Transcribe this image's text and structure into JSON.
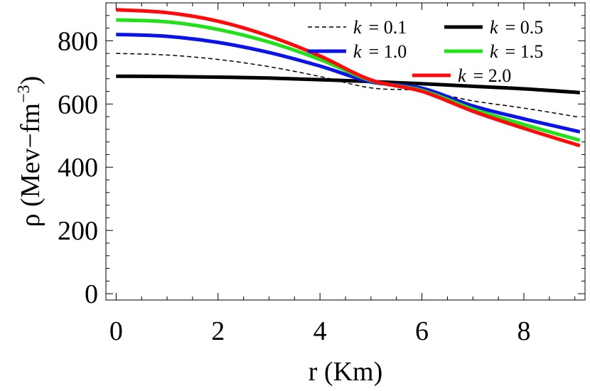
{
  "chart_data": {
    "type": "line",
    "xlabel": "r (Km)",
    "ylabel": "ρ (Mev−fm",
    "ylabel_sup": "−3",
    "ylabel_close": ")",
    "xlim": [
      -0.2,
      9.2
    ],
    "ylim": [
      -20,
      920
    ],
    "xticks": [
      0,
      2,
      4,
      6,
      8
    ],
    "xtick_labels": [
      "0",
      "2",
      "4",
      "6",
      "8"
    ],
    "yticks": [
      0,
      200,
      400,
      600,
      800
    ],
    "ytick_labels": [
      "0",
      "200",
      "400",
      "600",
      "800"
    ],
    "grid": false,
    "legend_position": "top-right",
    "series": [
      {
        "name": "k = 0.1",
        "k_symbol": "k",
        "k_value": "= 0.1",
        "color": "#000000",
        "dashed": true,
        "width": 1.5,
        "x": [
          0,
          1,
          2,
          3,
          4,
          5,
          6,
          7,
          8,
          9.1
        ],
        "y": [
          760,
          755,
          741,
          718,
          687,
          651,
          642,
          610,
          587,
          558
        ]
      },
      {
        "name": "k = 0.5",
        "k_symbol": "k",
        "k_value": "= 0.5",
        "color": "#000000",
        "dashed": false,
        "width": 5,
        "x": [
          0,
          1,
          2,
          3,
          4,
          5,
          6,
          7,
          8,
          9.1
        ],
        "y": [
          688,
          687,
          685,
          682,
          677,
          671,
          664,
          656,
          648,
          636
        ]
      },
      {
        "name": "k = 1.0",
        "k_symbol": "k",
        "k_value": "= 1.0",
        "color": "#0a14e6",
        "dashed": false,
        "width": 5,
        "x": [
          0,
          1,
          2,
          3,
          4,
          5,
          6,
          7,
          8,
          9.1
        ],
        "y": [
          820,
          814,
          795,
          763,
          720,
          670,
          650,
          594,
          553,
          512
        ]
      },
      {
        "name": "k = 1.5",
        "k_symbol": "k",
        "k_value": "= 1.5",
        "color": "#22e01a",
        "dashed": false,
        "width": 5,
        "x": [
          0,
          1,
          2,
          3,
          4,
          5,
          6,
          7,
          8,
          9.1
        ],
        "y": [
          866,
          860,
          836,
          796,
          741,
          674,
          643,
          584,
          535,
          485
        ]
      },
      {
        "name": "k = 2.0",
        "k_symbol": "k",
        "k_value": "= 2.0",
        "color": "#ff0a0a",
        "dashed": false,
        "width": 5,
        "x": [
          0,
          1,
          2,
          3,
          4,
          5,
          6,
          7,
          8,
          9.1
        ],
        "y": [
          898,
          889,
          862,
          815,
          752,
          676,
          640,
          577,
          523,
          468
        ]
      }
    ]
  }
}
